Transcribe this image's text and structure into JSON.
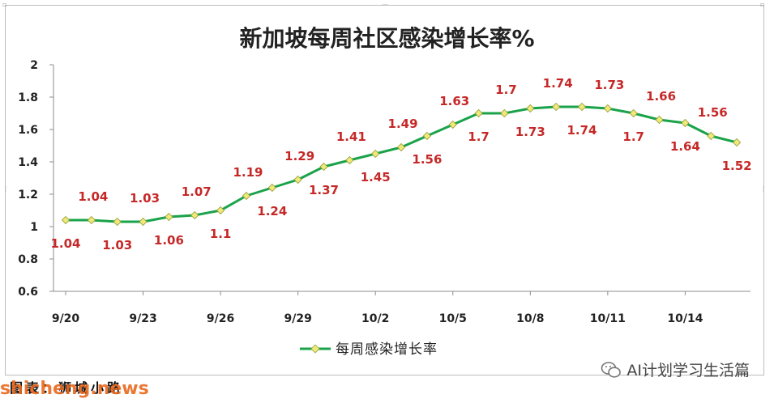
{
  "chart_data": {
    "type": "line",
    "title": "新加坡每周社区感染增长率%",
    "xlabel": "",
    "ylabel": "",
    "ylim": [
      0.6,
      2
    ],
    "y_ticks": [
      "0.6",
      "0.8",
      "1",
      "1.2",
      "1.4",
      "1.6",
      "1.8",
      "2"
    ],
    "x_tick_labels": [
      "9/20",
      "9/23",
      "9/26",
      "9/29",
      "10/2",
      "10/5",
      "10/8",
      "10/11",
      "10/14"
    ],
    "x": [
      "9/20",
      "9/21",
      "9/22",
      "9/23",
      "9/24",
      "9/25",
      "9/26",
      "9/27",
      "9/28",
      "9/29",
      "9/30",
      "10/1",
      "10/2",
      "10/3",
      "10/4",
      "10/5",
      "10/6",
      "10/7",
      "10/8",
      "10/9",
      "10/10",
      "10/11",
      "10/12",
      "10/13",
      "10/14",
      "10/15",
      "10/16"
    ],
    "series": [
      {
        "name": "每周感染增长率",
        "color": "#1aa34a",
        "marker_color": "#f0e87a",
        "values": [
          1.04,
          1.04,
          1.03,
          1.03,
          1.06,
          1.07,
          1.1,
          1.19,
          1.24,
          1.29,
          1.37,
          1.41,
          1.45,
          1.49,
          1.56,
          1.63,
          1.7,
          1.7,
          1.73,
          1.74,
          1.74,
          1.73,
          1.7,
          1.66,
          1.64,
          1.56,
          1.52
        ],
        "labels": [
          "1.04",
          "1.04",
          "1.03",
          "1.03",
          "1.06",
          "1.07",
          "1.1",
          "1.19",
          "1.24",
          "1.29",
          "1.37",
          "1.41",
          "1.45",
          "1.49",
          "1.56",
          "1.63",
          "1.7",
          "1.7",
          "1.73",
          "1.74",
          "1.74",
          "1.73",
          "1.7",
          "1.66",
          "1.64",
          "1.56",
          "1.52"
        ],
        "label_side": [
          "below",
          "above",
          "below",
          "above",
          "below",
          "above",
          "below",
          "above",
          "below",
          "above",
          "below",
          "above",
          "below",
          "above",
          "below",
          "above",
          "below",
          "above",
          "below",
          "above",
          "below",
          "above",
          "below",
          "above",
          "below",
          "above",
          "below"
        ]
      }
    ],
    "grid": false,
    "legend": "bottom"
  },
  "footer": {
    "source": "图表：狮城小路",
    "watermark": "shicheng.news",
    "wechat_account": "AI计划学习生活篇",
    "icon": "wechat-icon"
  }
}
